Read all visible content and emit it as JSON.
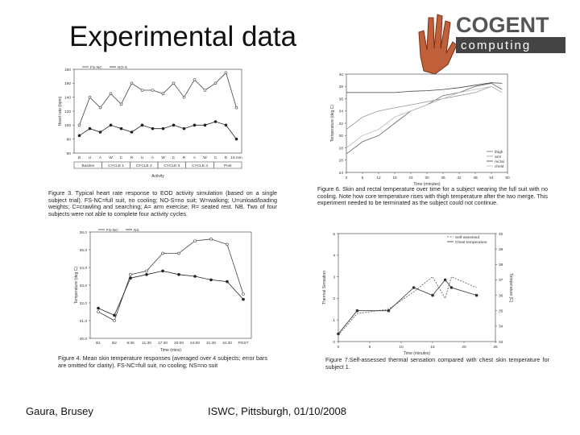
{
  "title": "Experimental data",
  "logo": {
    "name": "COGENT",
    "sub": "computing"
  },
  "captions": [
    "Figure 3. Typical heart rate response to EOD activity simulation (based on a single subject trial). FS-NC=full suit, no cooling; NO-S=no suit; W=walking; U=unload/loading weights; C=crawling and searching; A= arm exercise; R= seated rest. NB. Two of four subjects were not able to complete four activity cycles.",
    "Figure 4. Mean skin temperature responses (averaged over 4 subjects; error bars are omitted for clarity). FS-NC=full suit, no cooling; NS=no suit",
    "Figure 6. Skin and rectal temperature over time for a subject wearing the full suit with no cooling. Note how core temperature rises with thigh temperature after the two merge. This experiment needed to be terminated as the subject could not continue.",
    "Figure 7.Self-assessed thermal sensation compared with chest skin temperature for subject 1."
  ],
  "footer": {
    "left": "Gaura, Brusey",
    "center": "ISWC, Pittsburgh, 01/10/2008"
  },
  "chart_data": [
    {
      "type": "line",
      "y_label": "Heart rate (bpm)",
      "x_label": "Activity",
      "categories": [
        "B",
        "U",
        "A",
        "W",
        "C",
        "R",
        "U",
        "A",
        "W",
        "C",
        "R",
        "A",
        "W",
        "C",
        "R",
        "16 min"
      ],
      "annotations": [
        "Basline",
        "CYCLE 1",
        "CYCLE 2",
        "CYCLE 3",
        "CYCLE 4",
        "Post"
      ],
      "series": [
        {
          "name": "FS-NC",
          "color": "#444",
          "marker": "open",
          "values": [
            100,
            140,
            125,
            145,
            130,
            160,
            150,
            150,
            145,
            160,
            140,
            165,
            150,
            160,
            175,
            125
          ]
        },
        {
          "name": "NO-S",
          "color": "#222",
          "marker": "filled",
          "values": [
            85,
            95,
            90,
            100,
            95,
            90,
            100,
            95,
            95,
            100,
            95,
            100,
            100,
            105,
            100,
            80
          ]
        }
      ],
      "ylim": [
        60,
        180
      ],
      "yticks": [
        60,
        80,
        100,
        120,
        140,
        160,
        180
      ],
      "legend": "top-left"
    },
    {
      "type": "line",
      "y_label": "Temperature (deg C)",
      "x_label": "Time (mins)",
      "categories": [
        "B1",
        "B2",
        "9:30",
        "11:30",
        "17:30",
        "20:00",
        "24:00",
        "31:30",
        "34:30",
        "POST"
      ],
      "series": [
        {
          "name": "FS-NC",
          "color": "#444",
          "marker": "open",
          "values": [
            31.5,
            31.0,
            33.6,
            33.8,
            34.8,
            34.8,
            35.5,
            35.6,
            35.3,
            32.5
          ]
        },
        {
          "name": "NS",
          "color": "#222",
          "marker": "filled",
          "values": [
            31.7,
            31.3,
            33.4,
            33.6,
            33.8,
            33.6,
            33.5,
            33.3,
            33.2,
            32.2
          ]
        }
      ],
      "ylim": [
        30,
        36
      ],
      "yticks": [
        {
          "value": 30,
          "label": "30.0"
        },
        {
          "value": 31,
          "label": "31.0"
        },
        {
          "value": 32,
          "label": "32.0"
        },
        {
          "value": 33,
          "label": "33.0"
        },
        {
          "value": 34,
          "label": "34.0"
        },
        {
          "value": 35,
          "label": "35.0"
        },
        {
          "value": 36,
          "label": "36.0"
        }
      ],
      "legend": "top-left"
    },
    {
      "type": "line",
      "y_label": "Temperature (deg C)",
      "x_label": "Time (minutes)",
      "x": [
        0,
        6,
        12,
        18,
        24,
        30,
        36,
        42,
        48,
        54,
        58
      ],
      "series": [
        {
          "name": "thigh",
          "color": "#666",
          "values": [
            27,
            29,
            30,
            32,
            34,
            35,
            36.5,
            37,
            38,
            38.5,
            37.5
          ]
        },
        {
          "name": "arm",
          "color": "#999",
          "values": [
            31,
            33,
            34,
            34.5,
            35,
            35.5,
            36,
            36.5,
            37,
            38,
            37
          ]
        },
        {
          "name": "rectal",
          "color": "#444",
          "values": [
            37,
            37,
            37,
            37,
            37.2,
            37.3,
            37.5,
            37.8,
            38.2,
            38.6,
            38.5
          ]
        },
        {
          "name": "chest",
          "color": "#bbb",
          "values": [
            28,
            30,
            31,
            33,
            34,
            35,
            36,
            37,
            37.5,
            38,
            37
          ]
        }
      ],
      "xlim": [
        0,
        60
      ],
      "xticks": [
        0,
        6,
        12,
        18,
        24,
        30,
        36,
        42,
        48,
        54,
        60
      ],
      "ylim": [
        24,
        40
      ],
      "yticks": [
        24,
        26,
        28,
        30,
        32,
        34,
        36,
        38,
        40
      ],
      "legend": "bottom-right"
    },
    {
      "type": "line",
      "y_label": "Thermal Sensation",
      "x_label": "Time (minutes)",
      "y2_label": "Temperature [C]",
      "x": [
        0,
        3,
        8,
        12,
        15,
        17,
        18,
        22
      ],
      "series": [
        {
          "name": "Self-assessed",
          "color": "#555",
          "dash": true,
          "values": [
            0.3,
            1.3,
            1.5,
            2.3,
            3,
            2,
            3,
            2.5
          ]
        },
        {
          "name": "Chest temperature",
          "color": "#333",
          "marker": "filled",
          "axis": "y2",
          "values": [
            33.5,
            35,
            35,
            36.5,
            36,
            37,
            36.5,
            36
          ]
        }
      ],
      "xlim": [
        0,
        25
      ],
      "xticks": [
        0,
        5,
        10,
        15,
        20,
        25
      ],
      "ylim": [
        0,
        5
      ],
      "yticks": [
        0,
        1,
        2,
        3,
        4,
        5
      ],
      "y2lim": [
        33,
        40
      ],
      "y2ticks": [
        33,
        34,
        35,
        36,
        37,
        38,
        39,
        40
      ],
      "legend": "top-right"
    }
  ]
}
